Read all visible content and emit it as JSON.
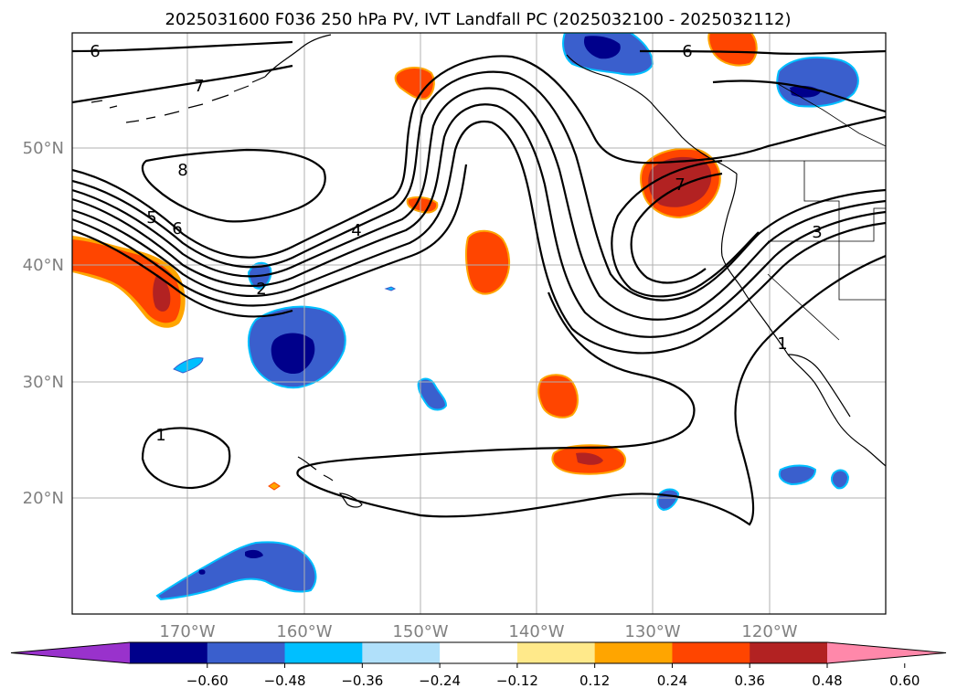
{
  "title": "2025031600 F036 250 hPa PV, IVT Landfall PC (2025032100 - 2025032112)",
  "lat_labels": [
    "50°N",
    "40°N",
    "30°N",
    "20°N"
  ],
  "lon_labels": [
    "170°W",
    "160°W",
    "150°W",
    "140°W",
    "130°W",
    "120°W"
  ],
  "contour_labels": [
    "6",
    "7",
    "8",
    "5",
    "6",
    "4",
    "2",
    "6",
    "7",
    "3",
    "1",
    "1"
  ],
  "colorbar": {
    "ticks": [
      "−0.60",
      "−0.48",
      "−0.36",
      "−0.24",
      "−0.12",
      "0.12",
      "0.24",
      "0.36",
      "0.48",
      "0.60"
    ],
    "colors": [
      "#9932cc",
      "#00008b",
      "#3a5fcd",
      "#00bfff",
      "#b0e0fa",
      "#ffffff",
      "#ffe98a",
      "#ffa500",
      "#ff4500",
      "#b22222",
      "#ff88aa"
    ]
  },
  "shading_colors": {
    "neg_strong": "#00008b",
    "neg_mid": "#3a5fcd",
    "neg_weak": "#00bfff",
    "pos_weak": "#ffa500",
    "pos_mid": "#ff4500",
    "pos_strong": "#b22222"
  }
}
